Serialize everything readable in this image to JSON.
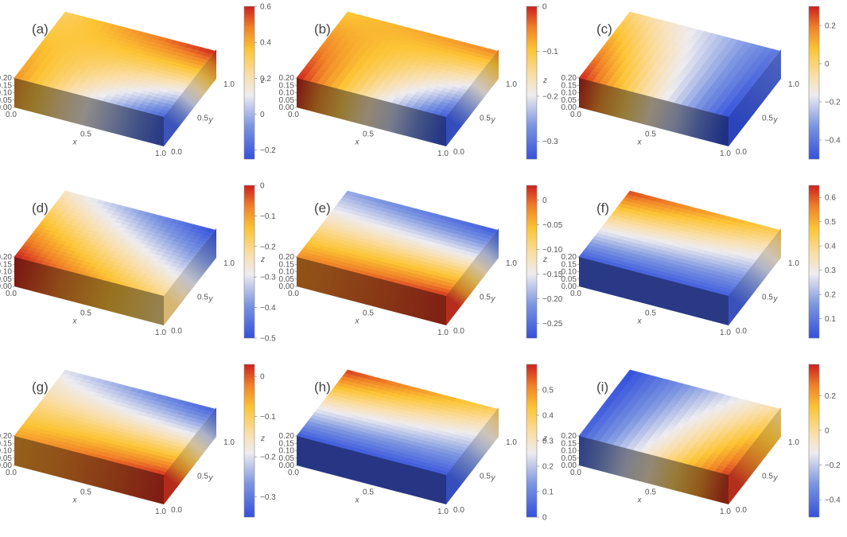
{
  "chart_data": [
    {
      "label": "(a)",
      "type": "heatmap",
      "surface": {
        "A": 0.45,
        "B": 0.3,
        "C": 0.6,
        "D": -0.2
      },
      "colorbar": {
        "min": -0.25,
        "max": 0.6,
        "ticks": [
          -0.2,
          0,
          0.2,
          0.4,
          0.6
        ],
        "tick_labels": [
          "−0.2",
          "0",
          "0.2",
          "0.4",
          "0.6"
        ]
      },
      "axes": {
        "x_ticks": [
          "0.0",
          "0.5",
          "1.0"
        ],
        "y_ticks": [
          "0.0",
          "0.5",
          "1.0"
        ],
        "z_ticks": [
          "0.00",
          "0.05",
          "0.10",
          "0.15",
          "0.20"
        ],
        "x_label": "x",
        "y_label": "y",
        "z_label": "z"
      }
    },
    {
      "label": "(b)",
      "type": "heatmap",
      "surface": {
        "A": 0.0,
        "B": -0.1,
        "C": -0.05,
        "D": -0.33
      },
      "colorbar": {
        "min": -0.34,
        "max": 0.0,
        "ticks": [
          -0.3,
          -0.2,
          -0.1,
          0
        ],
        "tick_labels": [
          "−0.3",
          "−0.2",
          "−0.1",
          "0"
        ]
      },
      "axes": {
        "x_ticks": [
          "0.0",
          "0.5",
          "1.0"
        ],
        "y_ticks": [
          "0.0",
          "0.5",
          "1.0"
        ],
        "z_ticks": [
          "0.00",
          "0.05",
          "0.10",
          "0.15",
          "0.20"
        ],
        "x_label": "x",
        "y_label": "y",
        "z_label": "z"
      }
    },
    {
      "label": "(c)",
      "type": "heatmap",
      "surface": {
        "A": 0.3,
        "B": 0.0,
        "C": -0.4,
        "D": -0.5
      },
      "colorbar": {
        "min": -0.5,
        "max": 0.3,
        "ticks": [
          -0.4,
          -0.2,
          0,
          0.2
        ],
        "tick_labels": [
          "−0.4",
          "−0.2",
          "0",
          "0.2"
        ]
      },
      "axes": {
        "x_ticks": [
          "0.0",
          "0.5",
          "1.0"
        ],
        "y_ticks": [
          "0.0",
          "0.5",
          "1.0"
        ],
        "z_ticks": [
          "0.00",
          "0.05",
          "0.10",
          "0.15",
          "0.20"
        ],
        "x_label": "x",
        "y_label": "y",
        "z_label": "z"
      }
    },
    {
      "label": "(d)",
      "type": "heatmap",
      "surface": {
        "A": 0.0,
        "B": -0.25,
        "C": -0.5,
        "D": -0.2
      },
      "colorbar": {
        "min": -0.5,
        "max": 0.0,
        "ticks": [
          -0.5,
          -0.4,
          -0.3,
          -0.2,
          -0.1,
          0
        ],
        "tick_labels": [
          "−0.5",
          "−0.4",
          "−0.3",
          "−0.2",
          "−0.1",
          "0"
        ]
      },
      "axes": {
        "x_ticks": [
          "0.0",
          "0.5",
          "1.0"
        ],
        "y_ticks": [
          "0.0",
          "0.5",
          "1.0"
        ],
        "z_ticks": [
          "0.00",
          "0.05",
          "0.10",
          "0.15",
          "0.20"
        ],
        "x_label": "x",
        "y_label": "y",
        "z_label": "z"
      }
    },
    {
      "label": "(e)",
      "type": "heatmap",
      "surface": {
        "A": -0.02,
        "B": -0.2,
        "C": -0.27,
        "D": 0.02
      },
      "colorbar": {
        "min": -0.28,
        "max": 0.03,
        "ticks": [
          -0.25,
          -0.2,
          -0.15,
          -0.1,
          -0.05,
          0
        ],
        "tick_labels": [
          "−0.25",
          "−0.20",
          "−0.15",
          "−0.10",
          "−0.05",
          "0"
        ]
      },
      "axes": {
        "x_ticks": [
          "0.0",
          "0.5",
          "1.0"
        ],
        "y_ticks": [
          "0.0",
          "0.5",
          "1.0"
        ],
        "z_ticks": [
          "0.00",
          "0.05",
          "0.10",
          "0.15",
          "0.20"
        ],
        "x_label": "x",
        "y_label": "y",
        "z_label": "z"
      }
    },
    {
      "label": "(f)",
      "type": "heatmap",
      "surface": {
        "A": 0.05,
        "B": 0.62,
        "C": 0.45,
        "D": 0.05
      },
      "colorbar": {
        "min": 0.02,
        "max": 0.65,
        "ticks": [
          0.1,
          0.2,
          0.3,
          0.4,
          0.5,
          0.6
        ],
        "tick_labels": [
          "0.1",
          "0.2",
          "0.3",
          "0.4",
          "0.5",
          "0.6"
        ]
      },
      "axes": {
        "x_ticks": [
          "0.0",
          "0.5",
          "1.0"
        ],
        "y_ticks": [
          "0.0",
          "0.5",
          "1.0"
        ],
        "z_ticks": [
          "0.00",
          "0.05",
          "0.10",
          "0.15",
          "0.20"
        ],
        "x_label": "x",
        "y_label": "y",
        "z_label": "z"
      }
    },
    {
      "label": "(g)",
      "type": "heatmap",
      "surface": {
        "A": -0.05,
        "B": -0.2,
        "C": -0.33,
        "D": 0.02
      },
      "colorbar": {
        "min": -0.35,
        "max": 0.03,
        "ticks": [
          -0.3,
          -0.2,
          -0.1,
          0
        ],
        "tick_labels": [
          "−0.3",
          "−0.2",
          "−0.1",
          "0"
        ]
      },
      "axes": {
        "x_ticks": [
          "0.0",
          "0.5",
          "1.0"
        ],
        "y_ticks": [
          "0.0",
          "0.5",
          "1.0"
        ],
        "z_ticks": [
          "0.00",
          "0.05",
          "0.10",
          "0.15",
          "0.20"
        ],
        "x_label": "x",
        "y_label": "y",
        "z_label": "z"
      }
    },
    {
      "label": "(h)",
      "type": "heatmap",
      "surface": {
        "A": 0.02,
        "B": 0.58,
        "C": 0.4,
        "D": 0.02
      },
      "colorbar": {
        "min": 0.0,
        "max": 0.6,
        "ticks": [
          0,
          0.1,
          0.2,
          0.3,
          0.4,
          0.5
        ],
        "tick_labels": [
          "0",
          "0.1",
          "0.2",
          "0.3",
          "0.4",
          "0.5"
        ]
      },
      "axes": {
        "x_ticks": [
          "0.0",
          "0.5",
          "1.0"
        ],
        "y_ticks": [
          "0.0",
          "0.5",
          "1.0"
        ],
        "z_ticks": [
          "0.00",
          "0.05",
          "0.10",
          "0.15",
          "0.20"
        ],
        "x_label": "x",
        "y_label": "y",
        "z_label": "z"
      }
    },
    {
      "label": "(i)",
      "type": "heatmap",
      "surface": {
        "A": -0.45,
        "B": -0.5,
        "C": 0.0,
        "D": 0.35
      },
      "colorbar": {
        "min": -0.5,
        "max": 0.38,
        "ticks": [
          -0.4,
          -0.2,
          0,
          0.2
        ],
        "tick_labels": [
          "−0.4",
          "−0.2",
          "0",
          "0.2"
        ]
      },
      "axes": {
        "x_ticks": [
          "0.0",
          "0.5",
          "1.0"
        ],
        "y_ticks": [
          "0.0",
          "0.5",
          "1.0"
        ],
        "z_ticks": [
          "0.00",
          "0.05",
          "0.10",
          "0.15",
          "0.20"
        ],
        "x_label": "x",
        "y_label": "y",
        "z_label": "z"
      }
    }
  ]
}
